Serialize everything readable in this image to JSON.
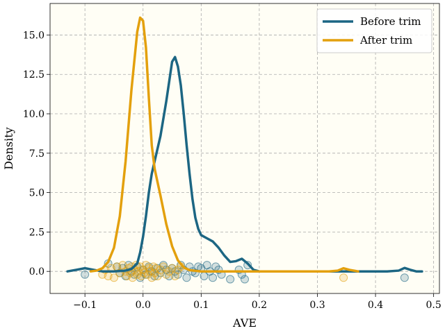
{
  "chart_data": {
    "type": "line",
    "xlabel": "AVE",
    "ylabel": "Density",
    "xlim": [
      -0.16,
      0.51
    ],
    "ylim": [
      -1.4,
      17.0
    ],
    "xticks": [
      "−0.1",
      "0.0",
      "0.1",
      "0.2",
      "0.3",
      "0.4",
      "0.5"
    ],
    "xtick_values": [
      -0.1,
      0.0,
      0.1,
      0.2,
      0.3,
      0.4,
      0.5
    ],
    "yticks": [
      "0.0",
      "2.5",
      "5.0",
      "7.5",
      "10.0",
      "12.5",
      "15.0"
    ],
    "ytick_values": [
      0.0,
      2.5,
      5.0,
      7.5,
      10.0,
      12.5,
      15.0
    ],
    "grid": true,
    "legend_position": "top-right",
    "background": "#fffef5",
    "series": [
      {
        "name": "Before trim",
        "color": "#1c6683",
        "points": [
          [
            -0.13,
            0.0
          ],
          [
            -0.115,
            0.1
          ],
          [
            -0.1,
            0.2
          ],
          [
            -0.085,
            0.1
          ],
          [
            -0.07,
            0.0
          ],
          [
            -0.05,
            0.0
          ],
          [
            -0.03,
            0.05
          ],
          [
            -0.02,
            0.15
          ],
          [
            -0.01,
            0.5
          ],
          [
            -0.005,
            1.2
          ],
          [
            0.0,
            2.2
          ],
          [
            0.005,
            3.5
          ],
          [
            0.01,
            5.0
          ],
          [
            0.015,
            6.2
          ],
          [
            0.02,
            7.0
          ],
          [
            0.03,
            8.6
          ],
          [
            0.04,
            10.8
          ],
          [
            0.05,
            13.3
          ],
          [
            0.055,
            13.6
          ],
          [
            0.06,
            13.0
          ],
          [
            0.065,
            11.8
          ],
          [
            0.07,
            10.0
          ],
          [
            0.075,
            8.0
          ],
          [
            0.08,
            6.2
          ],
          [
            0.085,
            4.6
          ],
          [
            0.09,
            3.4
          ],
          [
            0.095,
            2.7
          ],
          [
            0.1,
            2.3
          ],
          [
            0.11,
            2.1
          ],
          [
            0.12,
            1.9
          ],
          [
            0.13,
            1.5
          ],
          [
            0.14,
            1.0
          ],
          [
            0.15,
            0.6
          ],
          [
            0.16,
            0.65
          ],
          [
            0.17,
            0.8
          ],
          [
            0.18,
            0.5
          ],
          [
            0.19,
            0.1
          ],
          [
            0.2,
            0.0
          ],
          [
            0.3,
            0.0
          ],
          [
            0.42,
            0.0
          ],
          [
            0.44,
            0.05
          ],
          [
            0.45,
            0.22
          ],
          [
            0.46,
            0.1
          ],
          [
            0.47,
            0.0
          ],
          [
            0.48,
            0.0
          ]
        ]
      },
      {
        "name": "After trim",
        "color": "#e3a00d",
        "points": [
          [
            -0.09,
            0.0
          ],
          [
            -0.08,
            0.05
          ],
          [
            -0.07,
            0.2
          ],
          [
            -0.06,
            0.6
          ],
          [
            -0.05,
            1.5
          ],
          [
            -0.04,
            3.5
          ],
          [
            -0.03,
            7.0
          ],
          [
            -0.02,
            11.5
          ],
          [
            -0.01,
            15.2
          ],
          [
            -0.005,
            16.1
          ],
          [
            0.0,
            15.9
          ],
          [
            0.005,
            14.2
          ],
          [
            0.01,
            11.0
          ],
          [
            0.015,
            8.0
          ],
          [
            0.02,
            6.5
          ],
          [
            0.03,
            4.8
          ],
          [
            0.04,
            3.0
          ],
          [
            0.05,
            1.6
          ],
          [
            0.06,
            0.7
          ],
          [
            0.07,
            0.25
          ],
          [
            0.08,
            0.08
          ],
          [
            0.1,
            0.0
          ],
          [
            0.2,
            0.0
          ],
          [
            0.32,
            0.0
          ],
          [
            0.335,
            0.05
          ],
          [
            0.345,
            0.2
          ],
          [
            0.355,
            0.1
          ],
          [
            0.37,
            0.0
          ]
        ]
      }
    ],
    "scatter_before": {
      "color": "#1c6683",
      "x": [
        -0.1,
        -0.06,
        -0.045,
        -0.04,
        -0.035,
        -0.03,
        -0.025,
        -0.02,
        -0.015,
        -0.01,
        -0.005,
        0.0,
        0.005,
        0.01,
        0.015,
        0.02,
        0.025,
        0.03,
        0.035,
        0.04,
        0.045,
        0.05,
        0.055,
        0.06,
        0.065,
        0.07,
        0.075,
        0.08,
        0.085,
        0.09,
        0.095,
        0.1,
        0.105,
        0.11,
        0.115,
        0.12,
        0.125,
        0.13,
        0.135,
        0.15,
        0.165,
        0.17,
        0.175,
        0.18,
        0.45
      ],
      "y": [
        -0.2,
        0.5,
        0.3,
        -0.1,
        0.2,
        -0.3,
        0.4,
        0.0,
        -0.2,
        0.3,
        -0.4,
        0.1,
        -0.2,
        0.3,
        0.0,
        -0.3,
        0.2,
        -0.1,
        0.4,
        0.1,
        -0.3,
        0.2,
        0.0,
        -0.2,
        0.4,
        0.1,
        -0.4,
        0.3,
        0.0,
        -0.1,
        0.3,
        0.2,
        -0.3,
        0.4,
        0.0,
        -0.4,
        0.3,
        0.1,
        -0.2,
        -0.5,
        0.1,
        -0.2,
        -0.5,
        0.4,
        -0.4
      ]
    },
    "scatter_after": {
      "color": "#e3a00d",
      "x": [
        -0.07,
        -0.065,
        -0.06,
        -0.055,
        -0.05,
        -0.045,
        -0.04,
        -0.035,
        -0.03,
        -0.028,
        -0.025,
        -0.022,
        -0.02,
        -0.018,
        -0.015,
        -0.012,
        -0.01,
        -0.008,
        -0.005,
        -0.003,
        0.0,
        0.002,
        0.005,
        0.008,
        0.01,
        0.012,
        0.015,
        0.018,
        0.02,
        0.022,
        0.025,
        0.03,
        0.035,
        0.04,
        0.045,
        0.05,
        0.055,
        0.06,
        0.065,
        0.345
      ],
      "y": [
        -0.2,
        0.1,
        -0.3,
        0.2,
        -0.4,
        0.3,
        -0.1,
        0.4,
        0.0,
        -0.3,
        0.2,
        -0.1,
        0.3,
        -0.4,
        0.1,
        0.4,
        -0.2,
        0.0,
        0.3,
        -0.3,
        0.1,
        -0.1,
        0.4,
        -0.2,
        0.2,
        0.0,
        -0.4,
        0.3,
        -0.1,
        0.2,
        -0.3,
        0.1,
        0.3,
        -0.2,
        0.0,
        0.2,
        -0.3,
        0.1,
        0.3,
        -0.4
      ]
    }
  }
}
